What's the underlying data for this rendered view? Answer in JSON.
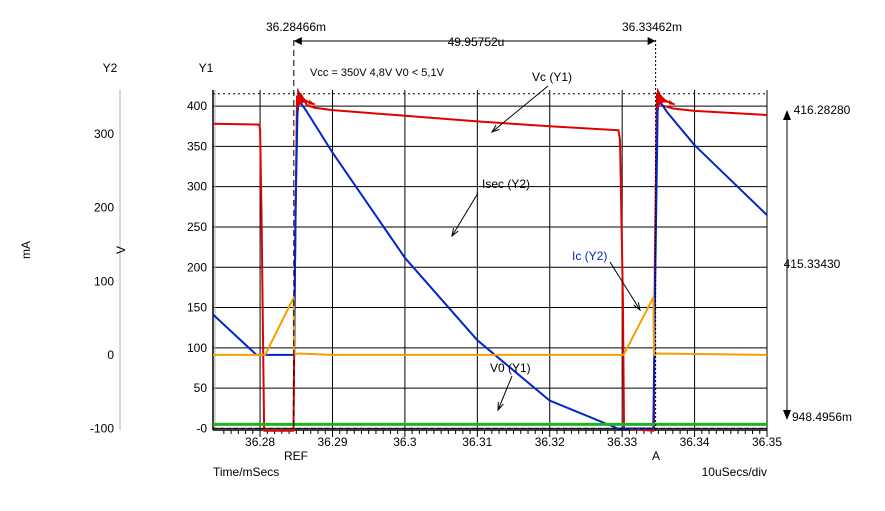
{
  "chart_data": {
    "type": "line",
    "x_axis": {
      "label": "Time/mSecs",
      "range": [
        36.2735,
        36.35
      ],
      "ticks": [
        36.28,
        36.29,
        36.3,
        36.31,
        36.32,
        36.33,
        36.34,
        36.35
      ],
      "tick_labels": [
        "36.28",
        "36.29",
        "36.3",
        "36.31",
        "36.32",
        "36.33",
        "36.34",
        "36.35"
      ],
      "division_label": "10uSecs/div"
    },
    "y1_axis": {
      "name": "Y1",
      "unit_label": "V",
      "range": [
        -2,
        420
      ],
      "ticks": [
        0,
        50,
        100,
        150,
        200,
        250,
        300,
        350,
        400
      ],
      "tick_labels": [
        "-0",
        "50",
        "100",
        "150",
        "200",
        "250",
        "300",
        "350",
        "400"
      ]
    },
    "y2_axis": {
      "name": "Y2",
      "unit_label": "mA",
      "range": [
        -102,
        360
      ],
      "ticks": [
        -100,
        0,
        100,
        200,
        300
      ],
      "tick_labels": [
        "-100",
        "0",
        "100",
        "200",
        "300"
      ]
    },
    "grid": true,
    "annotation_text": "Vcc = 350V   4,8V  V0 < 5,1V",
    "cursors": {
      "ref": {
        "label": "REF",
        "x": 36.28466,
        "value_label": "36.28466m"
      },
      "a": {
        "label": "A",
        "x": 36.33462,
        "value_label": "36.33462m"
      },
      "delta_label": "49.95752u",
      "right_labels": [
        "416.28280",
        "415.33430",
        "948.4956m"
      ],
      "level_y1": 415.3
    },
    "series": [
      {
        "name": "Vc (Y1)",
        "axis": "y1",
        "color": "#e00000",
        "x": [
          36.2735,
          36.2799,
          36.28,
          36.2802,
          36.28055,
          36.28056,
          36.2846,
          36.28462,
          36.2848,
          36.2851,
          36.2856,
          36.2865,
          36.2875,
          36.29,
          36.3,
          36.31,
          36.32,
          36.3295,
          36.3297,
          36.3301,
          36.33025,
          36.3343,
          36.3344,
          36.3345,
          36.3348,
          36.3355,
          36.337,
          36.34,
          36.35
        ],
        "y": [
          378,
          377,
          370,
          268,
          0,
          -3,
          -3,
          0,
          180,
          412,
          415,
          401,
          398,
          395,
          388,
          381,
          375,
          370,
          358,
          160,
          0,
          -3,
          0,
          200,
          415,
          401,
          397,
          394,
          389
        ]
      },
      {
        "name": "Isec (Y2)",
        "axis": "y2",
        "color": "#0026c9",
        "x": [
          36.2735,
          36.2795,
          36.2847,
          36.2849,
          36.28515,
          36.2853,
          36.2865,
          36.29,
          36.3,
          36.31,
          36.32,
          36.3294,
          36.3343,
          36.3346,
          36.3349,
          36.335,
          36.3362,
          36.34,
          36.35
        ],
        "y": [
          55,
          0,
          0,
          200,
          325,
          347,
          330,
          275,
          132,
          20,
          -62,
          -100,
          -100,
          130,
          330,
          347,
          330,
          285,
          190
        ]
      },
      {
        "name": "Ic (Y2)",
        "axis": "y2",
        "color": "#f5a000",
        "x": [
          36.2735,
          36.2807,
          36.28465,
          36.2847,
          36.2852,
          36.29,
          36.3,
          36.33,
          36.3302,
          36.3343,
          36.3344,
          36.3348,
          36.35
        ],
        "y": [
          0,
          0,
          78,
          0,
          2,
          0,
          0,
          0,
          0,
          78,
          0,
          2,
          0
        ]
      },
      {
        "name": "V0 (Y1)",
        "axis": "y1",
        "color": "#1fb41f",
        "x": [
          36.2735,
          36.35
        ],
        "y": [
          5,
          5
        ]
      }
    ],
    "series_labels": {
      "vc": "Vc (Y1)",
      "isec": "Isec (Y2)",
      "ic": "Ic (Y2)",
      "v0": "V0 (Y1)"
    }
  }
}
